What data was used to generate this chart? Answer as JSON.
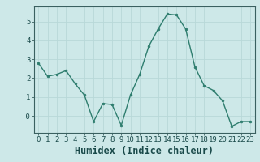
{
  "x": [
    0,
    1,
    2,
    3,
    4,
    5,
    6,
    7,
    8,
    9,
    10,
    11,
    12,
    13,
    14,
    15,
    16,
    17,
    18,
    19,
    20,
    21,
    22,
    23
  ],
  "y": [
    2.8,
    2.1,
    2.2,
    2.4,
    1.7,
    1.1,
    -0.3,
    0.65,
    0.6,
    -0.5,
    1.1,
    2.2,
    3.7,
    4.6,
    5.4,
    5.35,
    4.6,
    2.6,
    1.6,
    1.35,
    0.8,
    -0.55,
    -0.3,
    -0.3
  ],
  "line_color": "#2e7d6e",
  "marker": "o",
  "marker_size": 2.0,
  "bg_color": "#cde8e8",
  "grid_color": "#b8d8d8",
  "xlabel": "Humidex (Indice chaleur)",
  "ylim": [
    -0.9,
    5.8
  ],
  "xlim": [
    -0.5,
    23.5
  ],
  "yticks": [
    0,
    1,
    2,
    3,
    4,
    5
  ],
  "ytick_labels": [
    "-0",
    "1",
    "2",
    "3",
    "4",
    "5"
  ],
  "xticks": [
    0,
    1,
    2,
    3,
    4,
    5,
    6,
    7,
    8,
    9,
    10,
    11,
    12,
    13,
    14,
    15,
    16,
    17,
    18,
    19,
    20,
    21,
    22,
    23
  ],
  "line_width": 1.0,
  "tick_fontsize": 6.5,
  "xlabel_fontsize": 8.5
}
